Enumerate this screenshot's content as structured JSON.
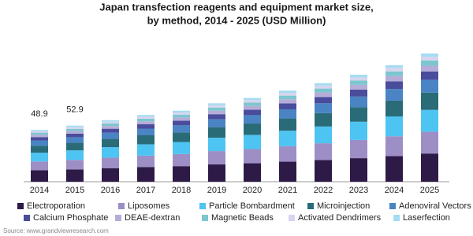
{
  "chart_data": {
    "type": "stacked_bar",
    "title": "Japan transfection reagents and equipment market size,",
    "subtitle": "by method, 2014 - 2025 (USD Million)",
    "categories": [
      "2014",
      "2015",
      "2016",
      "2017",
      "2018",
      "2019",
      "2020",
      "2021",
      "2022",
      "2023",
      "2024",
      "2025"
    ],
    "totals": [
      48.9,
      52.9,
      null,
      null,
      null,
      null,
      null,
      null,
      null,
      null,
      null,
      null
    ],
    "series": [
      {
        "name": "Electroporation",
        "color": "#2e1a47",
        "values": [
          10.8,
          11.6,
          12.8,
          13.9,
          14.7,
          16.3,
          17.4,
          18.9,
          20.5,
          22.2,
          24.2,
          26.6
        ]
      },
      {
        "name": "Liposomes",
        "color": "#9d8ec6",
        "values": [
          8.3,
          9.0,
          9.9,
          10.7,
          11.4,
          12.6,
          13.4,
          14.6,
          15.8,
          17.2,
          18.7,
          20.6
        ]
      },
      {
        "name": "Particle Bombardment",
        "color": "#4ec4f2",
        "values": [
          8.3,
          9.0,
          9.9,
          10.7,
          11.4,
          12.6,
          13.4,
          14.6,
          15.8,
          17.2,
          18.7,
          20.6
        ]
      },
      {
        "name": "Microinjection",
        "color": "#2a6b78",
        "values": [
          6.6,
          7.1,
          7.8,
          8.5,
          9.0,
          10.0,
          10.7,
          11.6,
          12.6,
          13.6,
          14.9,
          16.3
        ]
      },
      {
        "name": "Adenoviral Vectors",
        "color": "#4a84c4",
        "values": [
          4.9,
          5.3,
          5.8,
          6.3,
          6.7,
          7.4,
          7.9,
          8.6,
          9.3,
          10.1,
          11.0,
          12.1
        ]
      },
      {
        "name": "Calcium Phosphate",
        "color": "#4a4c9c",
        "values": [
          3.2,
          3.4,
          3.8,
          4.1,
          4.4,
          4.8,
          5.1,
          5.6,
          6.0,
          6.6,
          7.2,
          7.9
        ]
      },
      {
        "name": "DEAE-dextran",
        "color": "#b5acd8",
        "values": [
          2.2,
          2.4,
          2.6,
          2.8,
          3.0,
          3.3,
          3.6,
          3.9,
          4.2,
          4.5,
          5.0,
          5.4
        ]
      },
      {
        "name": "Magnetic Beads",
        "color": "#7cc6cf",
        "values": [
          2.0,
          2.1,
          2.3,
          2.5,
          2.7,
          3.0,
          3.2,
          3.4,
          3.7,
          4.0,
          4.4,
          4.8
        ]
      },
      {
        "name": "Activated Dendrimers",
        "color": "#d7d5ee",
        "values": [
          1.5,
          1.6,
          1.7,
          1.9,
          2.0,
          2.2,
          2.4,
          2.6,
          2.8,
          3.0,
          3.3,
          3.6
        ]
      },
      {
        "name": "Laserfection",
        "color": "#a6dcf2",
        "values": [
          1.1,
          1.4,
          1.5,
          1.6,
          1.7,
          1.8,
          1.9,
          2.2,
          2.3,
          2.6,
          2.6,
          3.1
        ]
      }
    ],
    "source": "Source: www.grandviewresearch.com"
  }
}
